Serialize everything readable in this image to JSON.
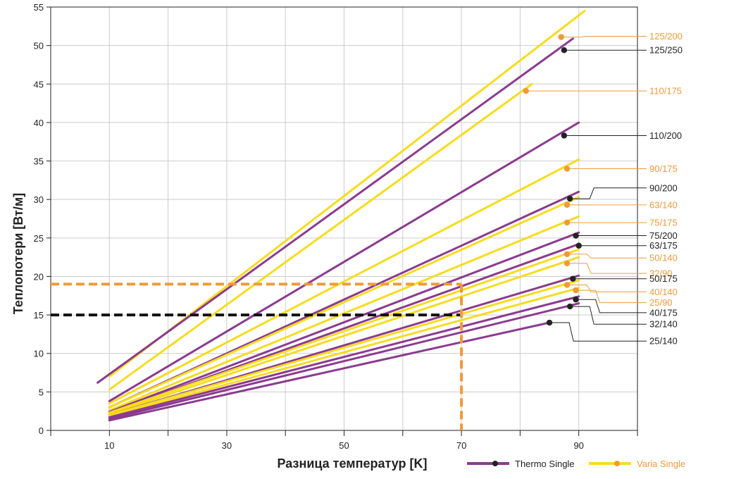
{
  "chart_data": {
    "type": "line",
    "xlabel": "Разница температур [K]",
    "ylabel": "Теплопотери [Вт/м]",
    "xlim": [
      0,
      100
    ],
    "ylim": [
      0,
      55
    ],
    "xticks": [
      10,
      30,
      50,
      70,
      90
    ],
    "yticks": [
      0,
      5,
      10,
      15,
      20,
      25,
      30,
      35,
      40,
      45,
      50,
      55
    ],
    "grid": true,
    "legend_position": "bottom-right",
    "colors": {
      "thermo": "#8b3a8f",
      "varia": "#f7dc1e",
      "varia_label": "#ef9a3a",
      "marker_thermo": "#222222",
      "marker_varia": "#ef9a3a",
      "ref_black": "#111111",
      "ref_orange": "#ef9a3a"
    },
    "legend": [
      {
        "label": "Thermo Single",
        "group": "thermo"
      },
      {
        "label": "Varia Single",
        "group": "varia"
      }
    ],
    "series": [
      {
        "name": "125/200",
        "group": "varia",
        "x": [
          10,
          91
        ],
        "y": [
          7.0,
          54.5
        ],
        "marker": [
          87.0,
          51.1
        ],
        "label_y": 51.2
      },
      {
        "name": "125/250",
        "group": "thermo",
        "x": [
          8,
          89
        ],
        "y": [
          6.2,
          50.9
        ],
        "marker": [
          87.5,
          49.4
        ],
        "label_y": 49.4
      },
      {
        "name": "110/175",
        "group": "varia",
        "x": [
          10,
          82
        ],
        "y": [
          5.3,
          45.0
        ],
        "marker": [
          81.0,
          44.1
        ],
        "label_y": 44.1
      },
      {
        "name": "110/200",
        "group": "thermo",
        "x": [
          10,
          90
        ],
        "y": [
          3.8,
          40.0
        ],
        "marker": [
          87.5,
          38.3
        ],
        "label_y": 38.3
      },
      {
        "name": "90/175",
        "group": "varia",
        "x": [
          10,
          90
        ],
        "y": [
          3.5,
          35.2
        ],
        "marker": [
          88.0,
          34.0
        ],
        "label_y": 34.0
      },
      {
        "name": "90/200",
        "group": "thermo",
        "x": [
          10,
          90
        ],
        "y": [
          3.0,
          31.0
        ],
        "marker": [
          88.5,
          30.1
        ],
        "label_y": 31.5
      },
      {
        "name": "63/140",
        "group": "varia",
        "x": [
          10,
          90
        ],
        "y": [
          3.0,
          30.3
        ],
        "marker": [
          88.0,
          29.3
        ],
        "label_y": 29.3
      },
      {
        "name": "75/175",
        "group": "varia",
        "x": [
          10,
          90
        ],
        "y": [
          2.6,
          27.8
        ],
        "marker": [
          88.0,
          27.0
        ],
        "label_y": 27.0
      },
      {
        "name": "75/200",
        "group": "thermo",
        "x": [
          10,
          90
        ],
        "y": [
          2.4,
          25.7
        ],
        "marker": [
          89.5,
          25.3
        ],
        "label_y": 25.3
      },
      {
        "name": "63/175",
        "group": "thermo",
        "x": [
          10,
          90
        ],
        "y": [
          2.3,
          24.2
        ],
        "marker": [
          90.0,
          24.0
        ],
        "label_y": 24.0
      },
      {
        "name": "50/140",
        "group": "varia",
        "x": [
          10,
          90
        ],
        "y": [
          2.3,
          23.5
        ],
        "marker": [
          88.0,
          22.9
        ],
        "label_y": 22.4
      },
      {
        "name": "32/90",
        "group": "varia",
        "x": [
          10,
          90
        ],
        "y": [
          2.1,
          22.5
        ],
        "marker": [
          88.0,
          21.7
        ],
        "label_y": 20.4
      },
      {
        "name": "50/175",
        "group": "thermo",
        "x": [
          10,
          90
        ],
        "y": [
          2.0,
          20.1
        ],
        "marker": [
          89.0,
          19.7
        ],
        "label_y": 19.7
      },
      {
        "name": "40/140",
        "group": "varia",
        "x": [
          10,
          90
        ],
        "y": [
          2.0,
          19.5
        ],
        "marker": [
          88.0,
          18.9
        ],
        "label_y": 18.0
      },
      {
        "name": "25/90",
        "group": "varia",
        "x": [
          10,
          90
        ],
        "y": [
          1.8,
          18.5
        ],
        "marker": [
          89.5,
          18.2
        ],
        "label_y": 16.6
      },
      {
        "name": "40/175",
        "group": "thermo",
        "x": [
          10,
          90
        ],
        "y": [
          1.7,
          17.4
        ],
        "marker": [
          89.5,
          17.0
        ],
        "label_y": 15.3
      },
      {
        "name": "32/140",
        "group": "thermo",
        "x": [
          10,
          90
        ],
        "y": [
          1.5,
          16.5
        ],
        "marker": [
          88.5,
          16.1
        ],
        "label_y": 13.8
      },
      {
        "name": "25/140",
        "group": "thermo",
        "x": [
          10,
          85
        ],
        "y": [
          1.3,
          14.0
        ],
        "marker": [
          85.0,
          14.0
        ],
        "label_y": 11.6
      }
    ],
    "reference_lines": [
      {
        "group": "ref_orange",
        "y": 19.0,
        "x": 70
      },
      {
        "group": "ref_black",
        "y": 15.0,
        "x": 70
      }
    ]
  }
}
